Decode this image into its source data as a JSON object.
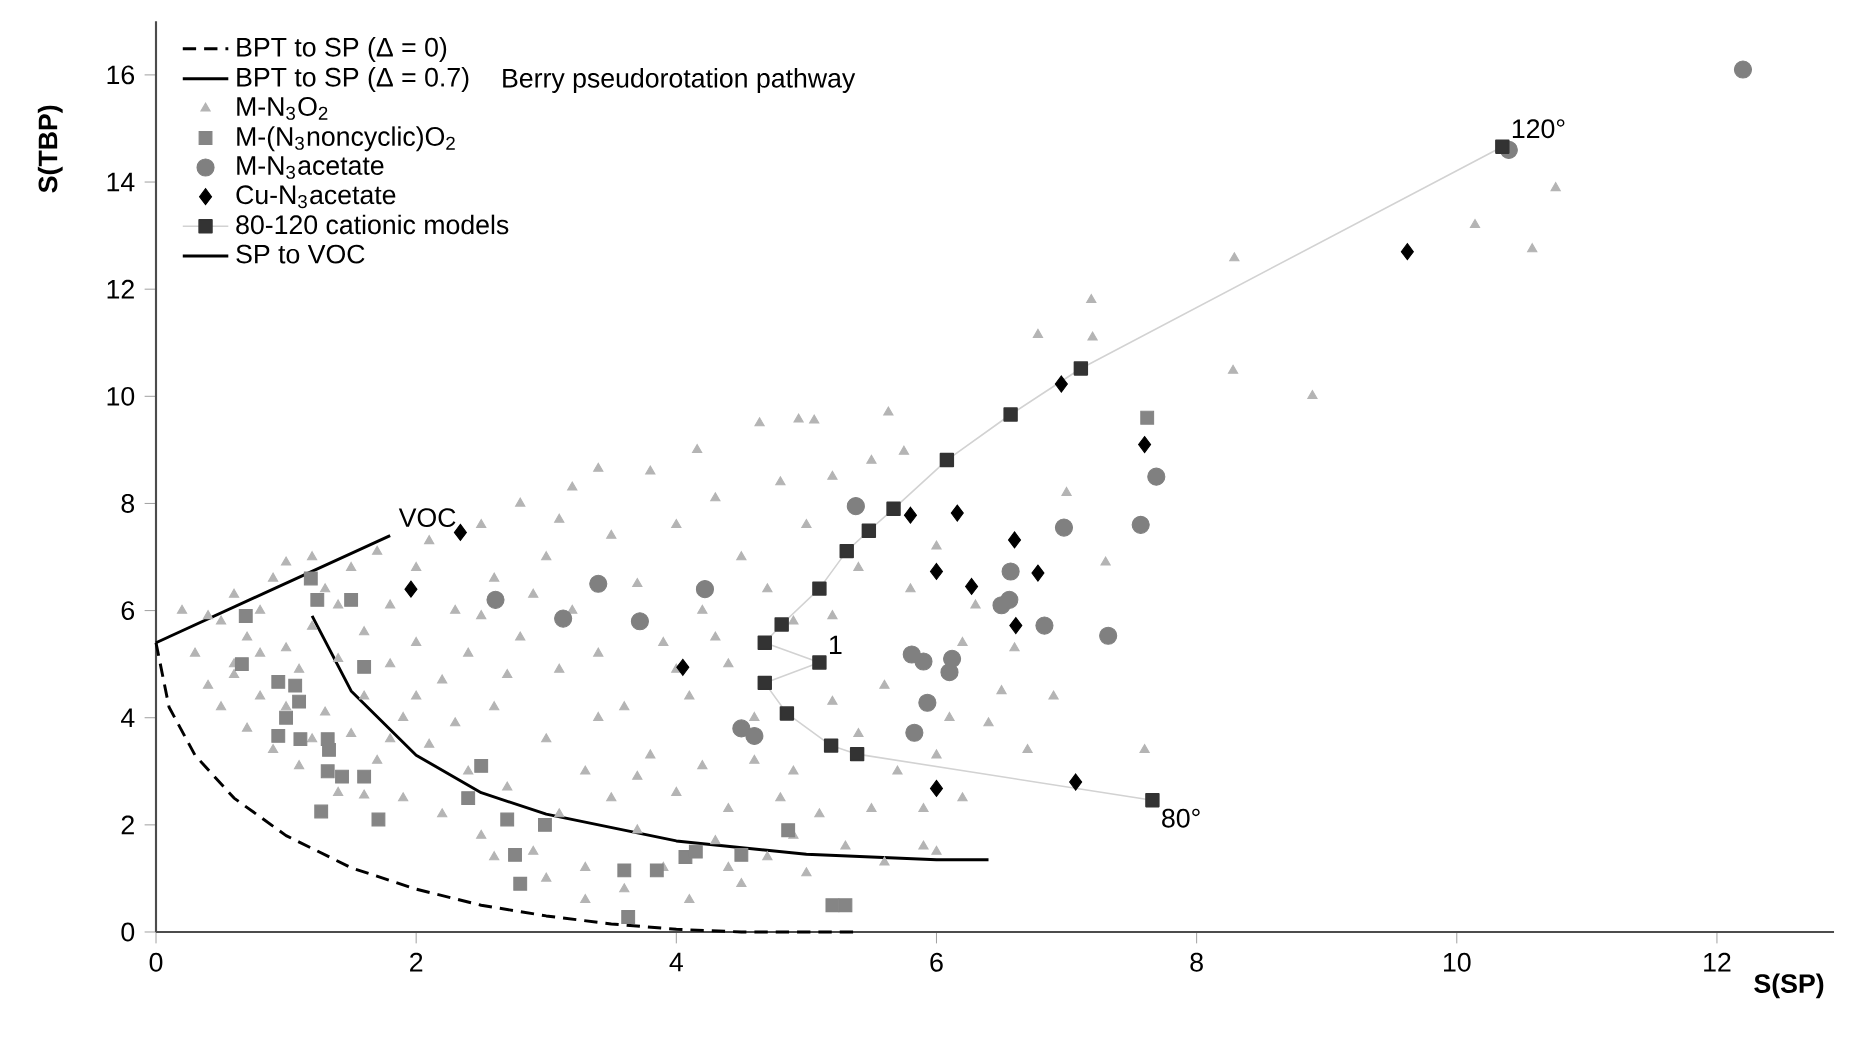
{
  "chart_data": {
    "type": "scatter",
    "xlabel": "S(SP)",
    "ylabel": "S(TBP)",
    "xlim": [
      0,
      12.9
    ],
    "ylim": [
      0,
      17
    ],
    "xticks": [
      0,
      2,
      4,
      6,
      8,
      10,
      12
    ],
    "yticks": [
      0,
      2,
      4,
      6,
      8,
      10,
      12,
      14,
      16
    ],
    "grid": false,
    "legend": "top left",
    "annotations": [
      "Berry pseudorotation pathway",
      {
        "text": "VOC",
        "x": 1.8,
        "y": 7.4
      },
      {
        "text": "120°",
        "x": 10.35,
        "y": 14.66
      },
      {
        "text": "80°",
        "x": 7.66,
        "y": 2.46
      },
      {
        "text": "1",
        "x": 5.1,
        "y": 5.03
      }
    ],
    "series": [
      {
        "name": "BPT to SP (Δ = 0)",
        "type": "line",
        "line_style": "dashed",
        "marker": "none",
        "color": "#000000",
        "x": [
          0,
          0.1,
          0.3,
          0.6,
          1,
          1.5,
          2,
          2.5,
          3,
          3.5,
          4,
          4.5,
          5,
          5.4
        ],
        "values": [
          5.4,
          4.2,
          3.3,
          2.5,
          1.8,
          1.2,
          0.8,
          0.5,
          0.3,
          0.15,
          0.05,
          0,
          0,
          0
        ]
      },
      {
        "name": "BPT to SP (Δ = 0.7)",
        "type": "line",
        "line_style": "solid",
        "marker": "none",
        "color": "#000000",
        "x": [
          1.2,
          1.5,
          2,
          2.5,
          3,
          4,
          5,
          6,
          6.4
        ],
        "values": [
          5.9,
          4.5,
          3.3,
          2.6,
          2.2,
          1.7,
          1.45,
          1.35,
          1.35
        ]
      },
      {
        "name": "M-N$_{3}$O$_{2}$",
        "type": "scatter",
        "marker": "triangle",
        "color": "#b4b4b4",
        "x": [
          0.3,
          0.4,
          0.5,
          0.5,
          0.6,
          0.6,
          0.7,
          0.7,
          0.8,
          0.8,
          0.9,
          0.9,
          1.0,
          1.0,
          1.1,
          1.1,
          1.2,
          1.2,
          1.3,
          1.3,
          1.4,
          1.4,
          1.5,
          1.5,
          1.6,
          1.6,
          1.7,
          1.7,
          1.8,
          1.8,
          1.9,
          1.9,
          2.0,
          2.0,
          2.1,
          2.1,
          2.2,
          2.2,
          2.3,
          2.4,
          2.4,
          2.5,
          2.5,
          2.6,
          2.6,
          2.7,
          2.8,
          2.8,
          2.9,
          3.0,
          3.0,
          3.1,
          3.1,
          3.2,
          3.2,
          3.3,
          3.3,
          3.4,
          3.4,
          3.5,
          3.5,
          3.6,
          3.6,
          3.7,
          3.7,
          3.8,
          3.8,
          3.9,
          3.9,
          4.0,
          4.0,
          4.1,
          4.1,
          4.16,
          4.2,
          4.2,
          4.3,
          4.3,
          4.4,
          4.4,
          4.5,
          4.5,
          4.6,
          4.64,
          4.7,
          4.7,
          4.8,
          4.8,
          4.94,
          4.9,
          5.0,
          5.0,
          5.06,
          5.1,
          5.2,
          5.2,
          5.3,
          5.4,
          5.4,
          5.5,
          5.5,
          5.63,
          5.6,
          5.7,
          5.75,
          5.8,
          5.9,
          5.9,
          6.0,
          6.0,
          6.1,
          6.2,
          6.2,
          6.3,
          6.4,
          6.5,
          6.6,
          6.7,
          6.9,
          7.0,
          7.6,
          7.3,
          6.78,
          7.2,
          7.19,
          8.29,
          8.28,
          8.89,
          10.14,
          10.58,
          10.76,
          0.2,
          0.4,
          0.6,
          0.8,
          1.0,
          1.2,
          1.4,
          1.6,
          1.8,
          2.0,
          2.3,
          2.5,
          2.7,
          2.9,
          3.1,
          3.4,
          3.7,
          4.0,
          4.3,
          4.6,
          4.9,
          5.2,
          3.0,
          3.3,
          2.6,
          4.4,
          4.9,
          5.6,
          6.0
        ],
        "values": [
          5.2,
          4.6,
          5.8,
          4.2,
          6.3,
          5.0,
          3.8,
          5.5,
          6.0,
          4.4,
          6.6,
          3.4,
          5.3,
          6.9,
          4.9,
          3.1,
          5.7,
          7.0,
          4.1,
          6.4,
          5.1,
          2.6,
          6.8,
          3.7,
          5.6,
          4.4,
          7.1,
          3.2,
          6.1,
          5.0,
          4.0,
          2.5,
          6.8,
          5.4,
          3.5,
          7.3,
          4.7,
          2.2,
          6.0,
          3.0,
          5.2,
          7.6,
          1.8,
          4.2,
          6.6,
          2.7,
          5.5,
          8.0,
          1.5,
          3.6,
          7.0,
          4.9,
          2.2,
          8.3,
          6.0,
          1.2,
          3.0,
          8.65,
          5.2,
          7.4,
          2.5,
          4.2,
          0.8,
          6.5,
          1.9,
          8.6,
          3.3,
          5.4,
          1.2,
          7.6,
          2.6,
          4.4,
          0.6,
          9.0,
          3.1,
          6.0,
          1.7,
          8.1,
          5.0,
          2.3,
          7.0,
          0.9,
          3.2,
          9.5,
          1.4,
          6.4,
          2.5,
          8.4,
          9.57,
          3.0,
          1.1,
          7.6,
          9.55,
          2.2,
          4.3,
          8.5,
          1.6,
          3.7,
          6.8,
          2.3,
          8.8,
          9.7,
          4.6,
          3.0,
          8.97,
          6.4,
          1.6,
          2.3,
          3.3,
          7.2,
          4.0,
          5.4,
          2.5,
          6.1,
          3.9,
          4.5,
          5.3,
          3.4,
          4.4,
          8.2,
          3.4,
          6.9,
          11.15,
          11.1,
          11.8,
          12.58,
          10.48,
          10.01,
          13.2,
          12.75,
          13.89,
          6.0,
          5.9,
          4.8,
          5.2,
          4.2,
          3.6,
          6.1,
          2.55,
          3.6,
          4.4,
          3.9,
          5.9,
          4.8,
          6.3,
          7.7,
          4.0,
          2.9,
          4.9,
          5.5,
          4.0,
          5.8,
          5.9,
          1.0,
          0.6,
          1.4,
          1.2,
          1.8,
          1.3,
          1.5
        ]
      },
      {
        "name": "M-(N$_{3}$noncyclic)O$_{2}$",
        "type": "scatter",
        "marker": "square",
        "color": "#858585",
        "x": [
          1.19,
          0.69,
          1.24,
          1.5,
          0.66,
          1.6,
          0.94,
          1.07,
          1.1,
          1.0,
          0.94,
          1.11,
          1.32,
          1.33,
          1.32,
          1.43,
          1.6,
          1.27,
          1.71,
          2.5,
          2.4,
          2.7,
          2.99,
          2.76,
          2.8,
          3.6,
          3.85,
          4.07,
          4.15,
          4.5,
          4.86,
          3.63,
          5.2,
          5.3,
          7.62
        ],
        "values": [
          6.6,
          5.9,
          6.2,
          6.2,
          5.0,
          4.95,
          4.67,
          4.6,
          4.3,
          4.0,
          3.66,
          3.6,
          3.6,
          3.4,
          3.0,
          2.9,
          2.9,
          2.25,
          2.1,
          3.1,
          2.5,
          2.1,
          2.0,
          1.44,
          0.9,
          1.15,
          1.15,
          1.4,
          1.5,
          1.44,
          1.9,
          0.28,
          0.5,
          0.5,
          9.6
        ]
      },
      {
        "name": "M-N$_{3}$acetate",
        "type": "scatter",
        "marker": "circle",
        "color": "#808080",
        "x": [
          2.61,
          3.13,
          3.4,
          3.72,
          4.22,
          4.5,
          4.6,
          5.38,
          6.98,
          7.57,
          7.69,
          6.57,
          6.5,
          6.56,
          6.83,
          7.32,
          5.81,
          5.9,
          6.12,
          6.1,
          5.93,
          5.83,
          12.2,
          10.4
        ],
        "values": [
          6.2,
          5.85,
          6.5,
          5.8,
          6.4,
          3.8,
          3.66,
          7.95,
          7.55,
          7.6,
          8.5,
          6.73,
          6.1,
          6.2,
          5.72,
          5.53,
          5.18,
          5.05,
          5.1,
          4.85,
          4.28,
          3.72,
          16.1,
          14.6
        ]
      },
      {
        "name": "Cu-N$_{3}$acetate",
        "type": "scatter",
        "marker": "diamond",
        "color": "#000000",
        "x": [
          2.34,
          1.96,
          4.05,
          9.62,
          6.96,
          7.6,
          5.8,
          6.16,
          6.6,
          6.0,
          6.27,
          6.78,
          6.61,
          6.0,
          7.07
        ],
        "values": [
          7.46,
          6.4,
          4.94,
          12.7,
          10.23,
          9.1,
          7.78,
          7.82,
          7.32,
          6.73,
          6.45,
          6.7,
          5.72,
          2.68,
          2.8
        ]
      },
      {
        "name": "80-120 cationic models",
        "type": "line",
        "line_style": "solid",
        "marker": "square",
        "color": "#333333",
        "x": [
          7.66,
          5.39,
          5.19,
          4.85,
          4.68,
          5.1,
          4.68,
          4.81,
          5.1,
          5.31,
          5.48,
          5.67,
          6.08,
          6.57,
          7.11,
          10.35
        ],
        "values": [
          2.46,
          3.32,
          3.48,
          4.08,
          4.65,
          5.03,
          5.4,
          5.74,
          6.41,
          7.11,
          7.49,
          7.9,
          8.81,
          9.66,
          10.52,
          14.66
        ]
      },
      {
        "name": "SP to VOC",
        "type": "line",
        "line_style": "solid",
        "marker": "none",
        "color": "#000000",
        "x": [
          0,
          1.8
        ],
        "values": [
          5.4,
          7.4
        ]
      }
    ]
  }
}
